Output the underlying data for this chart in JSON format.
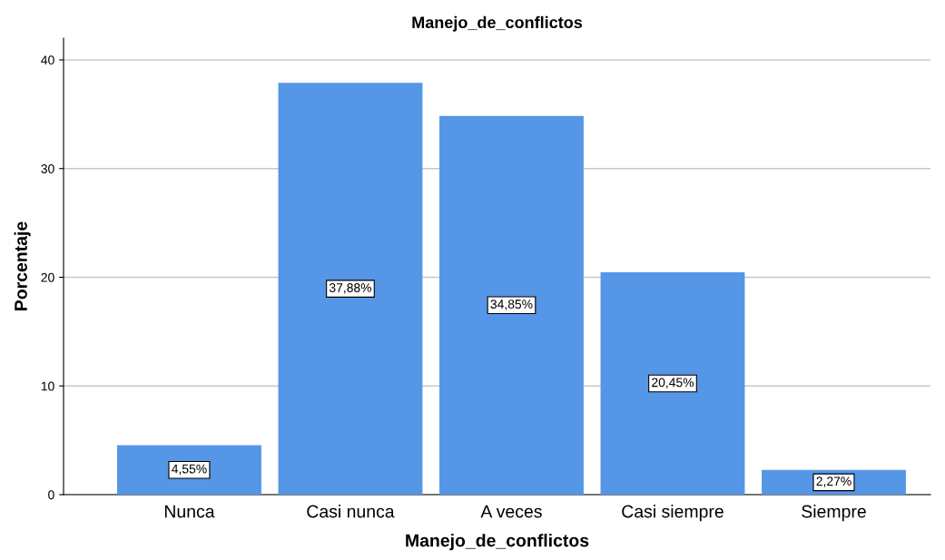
{
  "chart_data": {
    "type": "bar",
    "title": "Manejo_de_conflictos",
    "xlabel": "Manejo_de_conflictos",
    "ylabel": "Porcentaje",
    "categories": [
      "Nunca",
      "Casi nunca",
      "A veces",
      "Casi siempre",
      "Siempre"
    ],
    "values": [
      4.55,
      37.88,
      34.85,
      20.45,
      2.27
    ],
    "value_labels": [
      "4,55%",
      "37,88%",
      "34,85%",
      "20,45%",
      "2,27%"
    ],
    "color": "#5596e6",
    "ylim": [
      0,
      42
    ],
    "yticks": [
      0,
      10,
      20,
      30,
      40
    ],
    "grid": "y"
  }
}
